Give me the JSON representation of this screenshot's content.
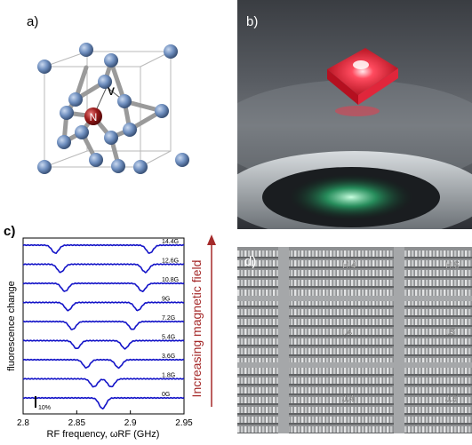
{
  "panels": {
    "a": {
      "label": "a)",
      "atom_labels": {
        "nitrogen": "N",
        "vacancy": "V"
      }
    },
    "b": {
      "label": "b)"
    },
    "c": {
      "label": "c)"
    },
    "d": {
      "label": "d)",
      "chip_labels": [
        "H.4",
        "H.5",
        "I.4",
        "I.5",
        "J.4",
        "J.5"
      ]
    }
  },
  "arrow_caption": "Increasing magnetic field",
  "colors": {
    "spectrum": "#1414c8",
    "arrow": "#a52a2a",
    "carbon": "#6f8fbf",
    "nitrogen": "#9b1b1b",
    "laser": "#ff2840"
  },
  "chart_data": {
    "type": "line",
    "title": "",
    "xlabel": "RF frequency, ωRF (GHz)",
    "ylabel": "fluorescence change",
    "xlim": [
      2.8,
      2.95
    ],
    "xticks": [
      "2.8",
      "2.85",
      "2.9",
      "2.95"
    ],
    "scale_bar": "10%",
    "series": [
      {
        "name": "0G",
        "dips": [
          2.874
        ]
      },
      {
        "name": "1.8G",
        "dips": [
          2.866,
          2.882
        ]
      },
      {
        "name": "3.6G",
        "dips": [
          2.859,
          2.889
        ]
      },
      {
        "name": "5.4G",
        "dips": [
          2.85,
          2.895
        ]
      },
      {
        "name": "7.2G",
        "dips": [
          2.846,
          2.902
        ]
      },
      {
        "name": "9G",
        "dips": [
          2.842,
          2.907
        ]
      },
      {
        "name": "10.8G",
        "dips": [
          2.839,
          2.911
        ]
      },
      {
        "name": "12.6G",
        "dips": [
          2.835,
          2.914
        ]
      },
      {
        "name": "14.4G",
        "dips": [
          2.83,
          2.918
        ]
      }
    ]
  }
}
